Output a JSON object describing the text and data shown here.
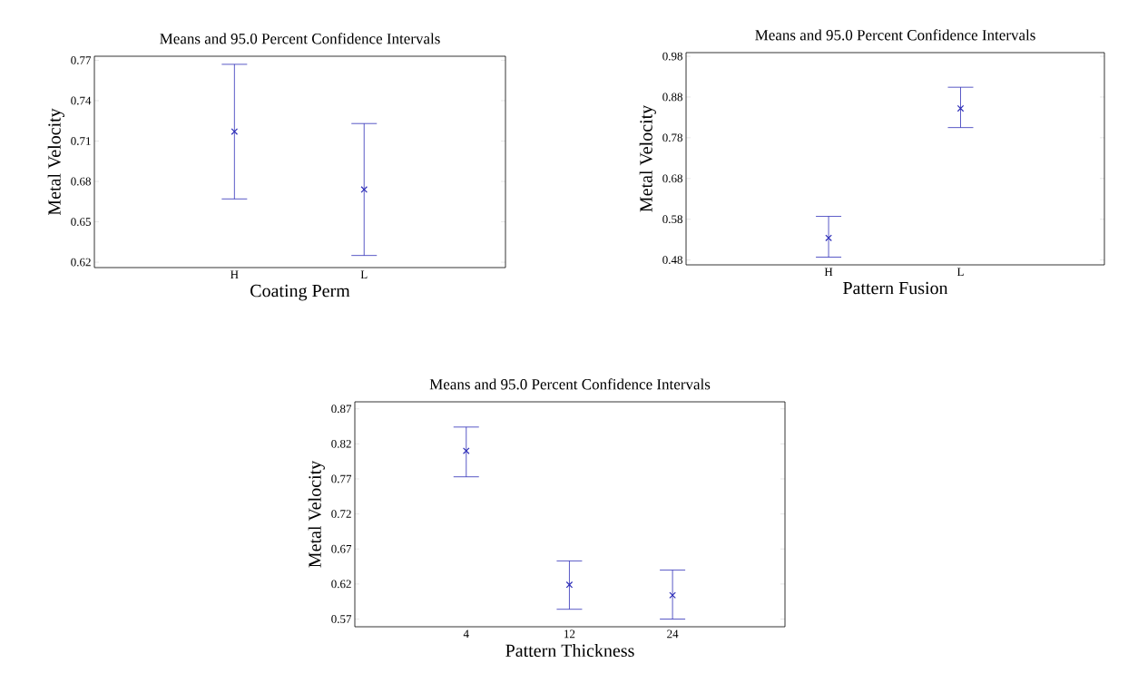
{
  "chart_data": [
    {
      "type": "scatter",
      "title": "Means and 95.0 Percent Confidence Intervals",
      "xlabel": "Coating Perm",
      "ylabel": "Metal Velocity",
      "categories": [
        "H",
        "L"
      ],
      "series": [
        {
          "color": "#2e2eb8",
          "values": [
            0.717,
            0.674
          ],
          "errors": [
            [
              0.667,
              0.767
            ],
            [
              0.625,
              0.723
            ]
          ]
        }
      ],
      "ylim": [
        0.616,
        0.773
      ],
      "yticks": [
        0.62,
        0.65,
        0.68,
        0.71,
        0.74,
        0.77
      ],
      "marker": "cross",
      "grid": false
    },
    {
      "type": "scatter",
      "title": "Means and 95.0 Percent Confidence Intervals",
      "xlabel": "Pattern Fusion",
      "ylabel": "Metal Velocity",
      "categories": [
        "H",
        "L"
      ],
      "series": [
        {
          "color": "#2e2eb8",
          "values": [
            0.534,
            0.852
          ],
          "errors": [
            [
              0.487,
              0.587
            ],
            [
              0.805,
              0.904
            ]
          ]
        }
      ],
      "ylim": [
        0.468,
        0.989
      ],
      "yticks": [
        0.48,
        0.58,
        0.68,
        0.78,
        0.88,
        0.98
      ],
      "marker": "cross",
      "grid": false
    },
    {
      "type": "scatter",
      "title": "Means and 95.0 Percent Confidence Intervals",
      "xlabel": "Pattern Thickness",
      "ylabel": "Metal Velocity",
      "categories": [
        "4",
        "12",
        "24"
      ],
      "series": [
        {
          "color": "#2e2eb8",
          "values": [
            0.81,
            0.619,
            0.604
          ],
          "errors": [
            [
              0.773,
              0.844
            ],
            [
              0.584,
              0.653
            ],
            [
              0.57,
              0.64
            ]
          ]
        }
      ],
      "ylim": [
        0.559,
        0.88
      ],
      "yticks": [
        0.57,
        0.62,
        0.67,
        0.72,
        0.77,
        0.82,
        0.87
      ],
      "marker": "cross",
      "grid": false
    }
  ]
}
